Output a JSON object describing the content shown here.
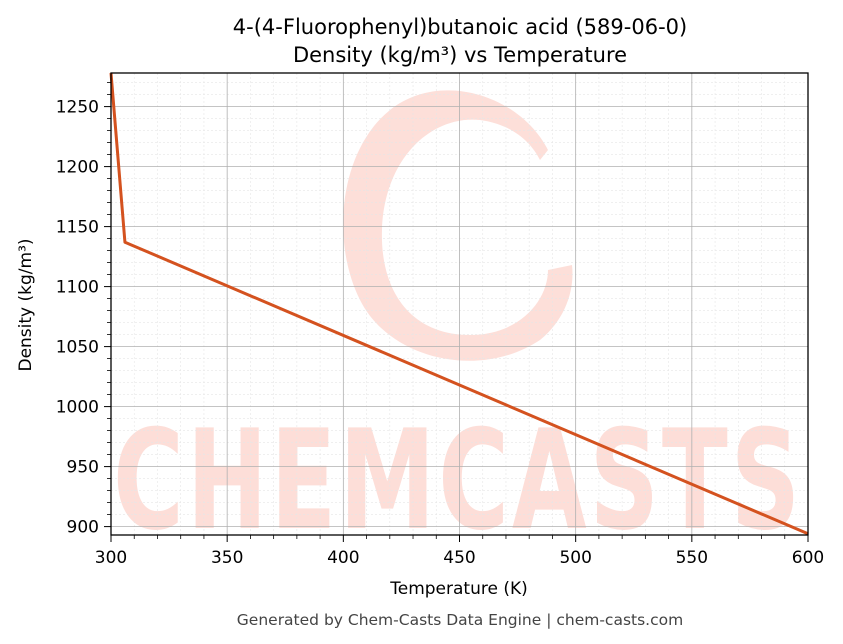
{
  "chart_data": {
    "type": "line",
    "title": "4-(4-Fluorophenyl)butanoic acid (589-06-0)",
    "subtitle": "Density (kg/m³) vs Temperature",
    "xlabel": "Temperature (K)",
    "ylabel": "Density (kg/m³)",
    "xlim": [
      300,
      600
    ],
    "ylim": [
      893,
      1278
    ],
    "xticks": [
      300,
      350,
      400,
      450,
      500,
      550,
      600
    ],
    "yticks": [
      900,
      950,
      1000,
      1050,
      1100,
      1150,
      1200,
      1250
    ],
    "grid": true,
    "series": [
      {
        "color": "#d4521f",
        "x": [
          300,
          306,
          600
        ],
        "y": [
          1278,
          1137,
          894
        ]
      }
    ]
  },
  "watermark": {
    "text": "CHEMCASTS"
  },
  "footer": "Generated by Chem-Casts Data Engine | chem-casts.com"
}
